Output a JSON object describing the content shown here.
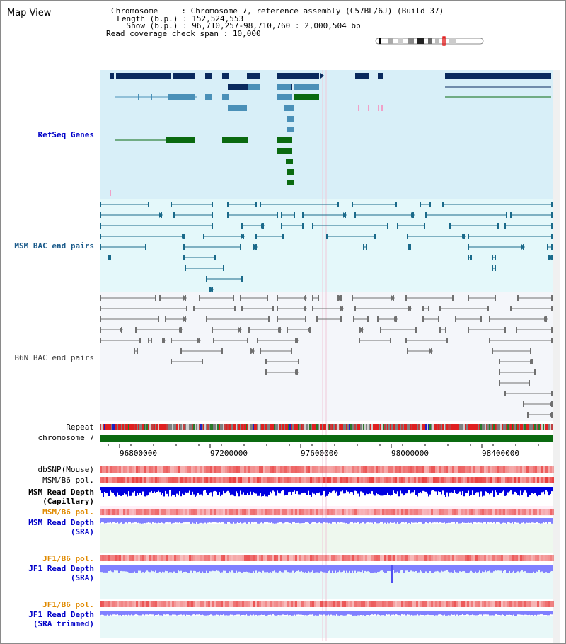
{
  "header": {
    "title": "Map View",
    "chromosome_label": "Chromosome",
    "chromosome_value": "Chromosome 7, reference assembly (C57BL/6J) (Build 37)",
    "length_label": "Length (b.p.)",
    "length_value": "152,524,553",
    "show_label": "Show (b.p.)",
    "show_value": "96,710,257-98,710,760 : 2,000,504 bp",
    "span_label": "Read coverage check span",
    "span_value": "10,000"
  },
  "tracks": {
    "refseq": "RefSeq Genes",
    "msm_bac": "MSM BAC end pairs",
    "b6n_bac": "B6N BAC end pairs",
    "repeat": "Repeat",
    "chromosome": "chromosome 7",
    "dbsnp": "dbSNP(Mouse)",
    "msm_b6_pol_1": "MSM/B6 pol.",
    "msm_read_depth_cap_1": "MSM Read Depth",
    "msm_read_depth_cap_2": "(Capillary)",
    "msm_b6_pol_2": "MSM/B6 pol.",
    "msm_read_depth_sra_1": "MSM Read Depth",
    "msm_read_depth_sra_2": "(SRA)",
    "jf1_b6_pol_1": "JF1/B6 pol.",
    "jf1_read_depth_sra_1": "JF1 Read Depth",
    "jf1_read_depth_sra_2": "(SRA)",
    "jf1_b6_pol_2": "JF1/B6 pol.",
    "jf1_read_depth_trim_1": "JF1 Read Depth",
    "jf1_read_depth_trim_2": "(SRA trimmed)"
  },
  "axis": {
    "ticks": [
      "96800000",
      "97200000",
      "97600000",
      "98000000",
      "98400000"
    ]
  },
  "colors": {
    "refseq_bg": "#d8eff8",
    "msm_bg": "#e4f8fa",
    "b6n_bg": "#f4f6fa",
    "navy": "#0a2a5e",
    "steel": "#4a90b8",
    "green": "#0a6a10",
    "teal_line": "#1a6a8a",
    "gray_line": "#707070",
    "chromosome": "#0a6a10",
    "depth_blue": "#0000e0",
    "depth_light": "#8080ff",
    "red": "#e02020"
  }
}
